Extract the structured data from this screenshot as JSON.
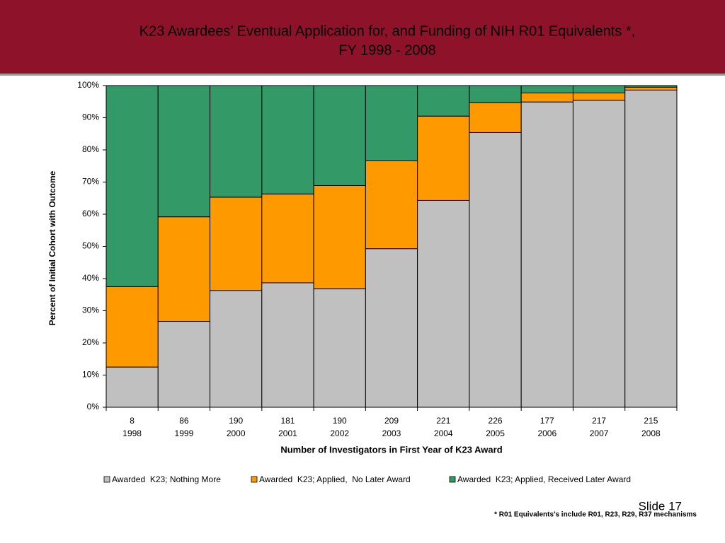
{
  "chart_data": {
    "type": "stacked_bar",
    "title": [
      "K23 Awardees’ Eventual Application for, and Funding of NIH R01 Equivalents *,",
      "FY 1998 - 2008"
    ],
    "categories": [
      [
        "8",
        "1998"
      ],
      [
        "86",
        "1999"
      ],
      [
        "190",
        "2000"
      ],
      [
        "181",
        "2001"
      ],
      [
        "190",
        "2002"
      ],
      [
        "209",
        "2003"
      ],
      [
        "221",
        "2004"
      ],
      [
        "226",
        "2005"
      ],
      [
        "177",
        "2006"
      ],
      [
        "217",
        "2007"
      ],
      [
        "215",
        "2008"
      ]
    ],
    "series": [
      {
        "name": "Awarded  K23; Nothing More",
        "color": "#c0c0c0",
        "values": [
          12.5,
          26.7,
          36.3,
          38.7,
          36.8,
          49.3,
          64.3,
          85.4,
          94.9,
          95.4,
          98.6
        ]
      },
      {
        "name": "Awarded  K23; Applied,  No Later Award",
        "color": "#ff9900",
        "values": [
          25,
          32.5,
          29,
          27.6,
          32.1,
          27.3,
          26.2,
          9.3,
          2.8,
          2.3,
          0.9
        ]
      },
      {
        "name": "Awarded  K23; Applied, Received Later Award",
        "color": "#339966",
        "values": [
          62.5,
          40.8,
          34.7,
          33.7,
          31.1,
          23.4,
          9.5,
          5.3,
          2.3,
          2.3,
          0.5
        ]
      }
    ],
    "ylim": [
      0,
      100
    ],
    "yticks": [
      {
        "value": 0,
        "label": "0%"
      },
      {
        "value": 10,
        "label": "10%"
      },
      {
        "value": 20,
        "label": "20%"
      },
      {
        "value": 30,
        "label": "30%"
      },
      {
        "value": 40,
        "label": "40%"
      },
      {
        "value": 50,
        "label": "50%"
      },
      {
        "value": 60,
        "label": "60%"
      },
      {
        "value": 70,
        "label": "70%"
      },
      {
        "value": 80,
        "label": "80%"
      },
      {
        "value": 90,
        "label": "90%"
      },
      {
        "value": 100,
        "label": "100%"
      }
    ],
    "y_label": "Percent of Initial Cohort with Outcome",
    "x_label": "Number of Investigators in First Year of K23 Award",
    "legend": "bottom",
    "slide_number": "Slide 17",
    "footnote": "* R01 Equivalents’s include R01, R23, R29, R37 mechanisms"
  }
}
